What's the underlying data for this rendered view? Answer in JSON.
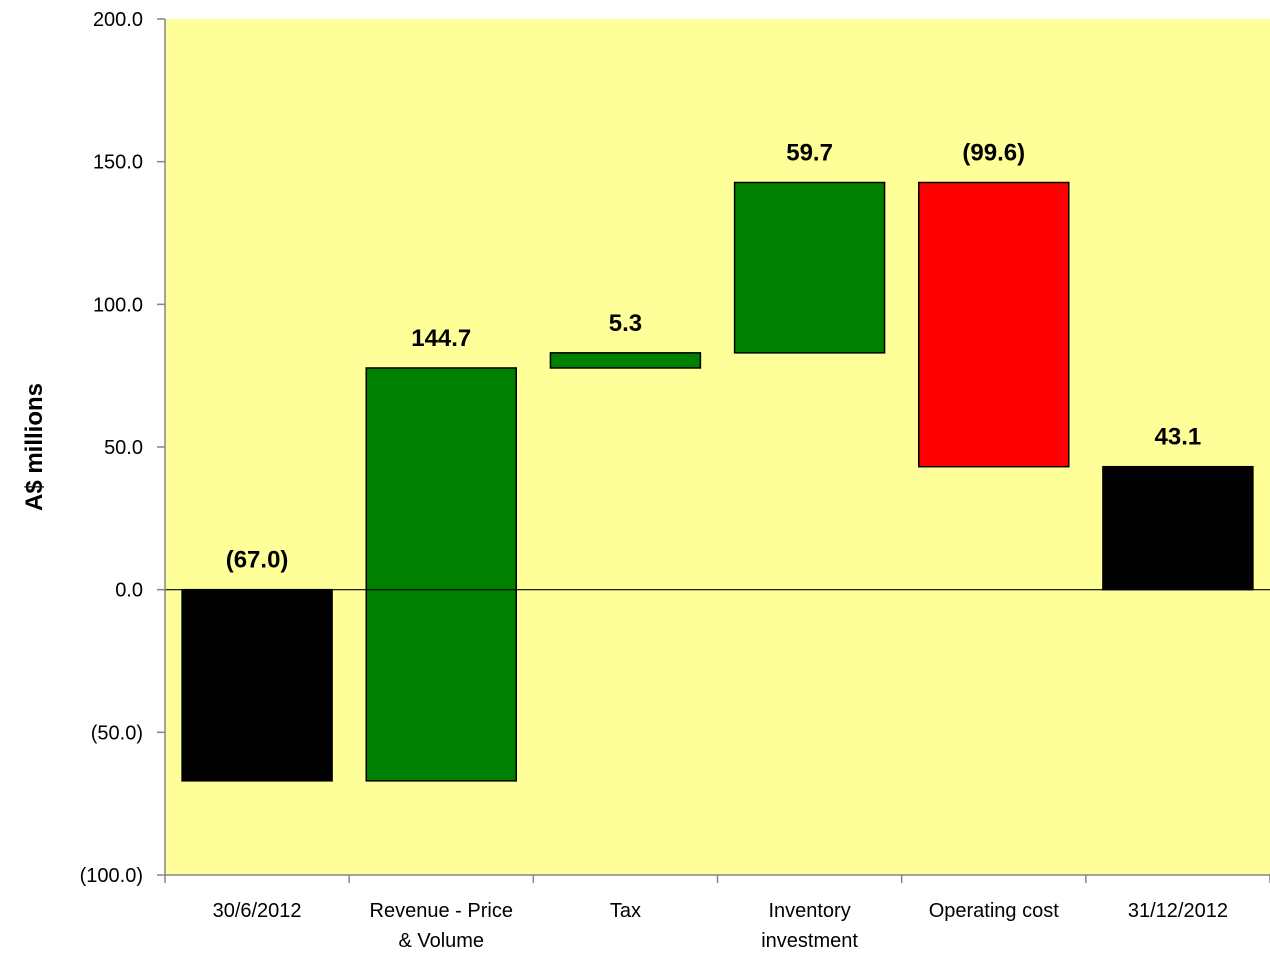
{
  "chart_data": {
    "type": "bar",
    "subtype": "waterfall",
    "title": "",
    "xlabel": "",
    "ylabel": "A$ millions",
    "ylim": [
      -100,
      200
    ],
    "y_ticks": [
      {
        "value": 200,
        "label": "200.0"
      },
      {
        "value": 150,
        "label": "150.0"
      },
      {
        "value": 100,
        "label": "100.0"
      },
      {
        "value": 50,
        "label": "50.0"
      },
      {
        "value": 0,
        "label": "0.0"
      },
      {
        "value": -50,
        "label": "(50.0)"
      },
      {
        "value": -100,
        "label": "(100.0)"
      }
    ],
    "categories": [
      [
        "30/6/2012"
      ],
      [
        "Revenue - Price",
        "& Volume"
      ],
      [
        "Tax"
      ],
      [
        "Inventory",
        "investment"
      ],
      [
        "Operating cost"
      ],
      [
        "31/12/2012"
      ]
    ],
    "bars": [
      {
        "start": 0,
        "end": -67.0,
        "label": "(67.0)",
        "color": "#000000"
      },
      {
        "start": -67.0,
        "end": 77.7,
        "label": "144.7",
        "color": "#008000"
      },
      {
        "start": 77.7,
        "end": 83.0,
        "label": "5.3",
        "color": "#008000"
      },
      {
        "start": 83.0,
        "end": 142.7,
        "label": "59.7",
        "color": "#008000"
      },
      {
        "start": 142.7,
        "end": 43.1,
        "label": "(99.6)",
        "color": "#ff0000"
      },
      {
        "start": 0,
        "end": 43.1,
        "label": "43.1",
        "color": "#000000"
      }
    ],
    "plot_background": "#ffff99",
    "grid": false,
    "legend": "none"
  }
}
